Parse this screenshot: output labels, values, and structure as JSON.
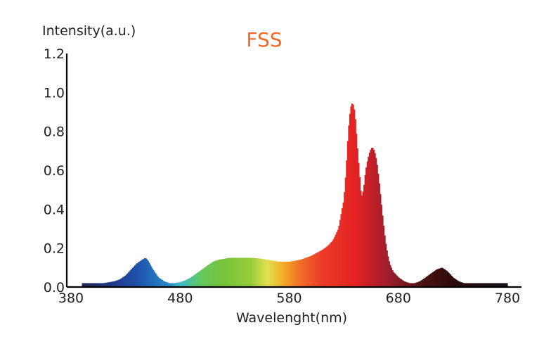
{
  "chart_data": {
    "type": "area",
    "title": "FSS",
    "xlabel": "Wavelenght(nm)",
    "ylabel": "Intensity(a.u.)",
    "xlim": [
      380,
      780
    ],
    "ylim": [
      0.0,
      1.2
    ],
    "xticks": [
      "380",
      "480",
      "580",
      "680",
      "780"
    ],
    "yticks": [
      "0.0",
      "0.2",
      "0.4",
      "0.6",
      "0.8",
      "1.0",
      "1.2"
    ],
    "grid": false,
    "series": [
      {
        "x": [
          390,
          395,
          400,
          405,
          410,
          415,
          420,
          425,
          430,
          435,
          440,
          445,
          448,
          450,
          452,
          455,
          460,
          465,
          470,
          475,
          480,
          485,
          490,
          495,
          500,
          505,
          510,
          515,
          520,
          525,
          530,
          535,
          540,
          545,
          550,
          555,
          560,
          565,
          570,
          575,
          580,
          585,
          590,
          595,
          600,
          605,
          610,
          615,
          620,
          625,
          630,
          632,
          634,
          636,
          638,
          640,
          642,
          644,
          646,
          648,
          650,
          652,
          654,
          656,
          658,
          660,
          662,
          664,
          666,
          668,
          670,
          672,
          675,
          680,
          685,
          690,
          695,
          700,
          705,
          710,
          715,
          720,
          725,
          730,
          735,
          740,
          745,
          750,
          755,
          760,
          765,
          770,
          775,
          780
        ],
        "values": [
          0.02,
          0.02,
          0.02,
          0.02,
          0.02,
          0.025,
          0.03,
          0.04,
          0.06,
          0.09,
          0.12,
          0.14,
          0.15,
          0.14,
          0.12,
          0.09,
          0.05,
          0.03,
          0.02,
          0.02,
          0.025,
          0.035,
          0.05,
          0.07,
          0.09,
          0.11,
          0.13,
          0.14,
          0.145,
          0.15,
          0.15,
          0.15,
          0.15,
          0.15,
          0.148,
          0.145,
          0.14,
          0.135,
          0.13,
          0.13,
          0.13,
          0.135,
          0.14,
          0.15,
          0.16,
          0.175,
          0.19,
          0.21,
          0.24,
          0.3,
          0.45,
          0.6,
          0.8,
          0.92,
          0.95,
          0.9,
          0.75,
          0.6,
          0.46,
          0.5,
          0.6,
          0.66,
          0.7,
          0.72,
          0.7,
          0.65,
          0.56,
          0.45,
          0.34,
          0.24,
          0.17,
          0.12,
          0.08,
          0.05,
          0.03,
          0.02,
          0.02,
          0.03,
          0.05,
          0.07,
          0.09,
          0.1,
          0.08,
          0.05,
          0.03,
          0.02,
          0.02,
          0.02,
          0.02,
          0.02,
          0.02,
          0.02,
          0.02,
          0.02
        ]
      }
    ]
  }
}
